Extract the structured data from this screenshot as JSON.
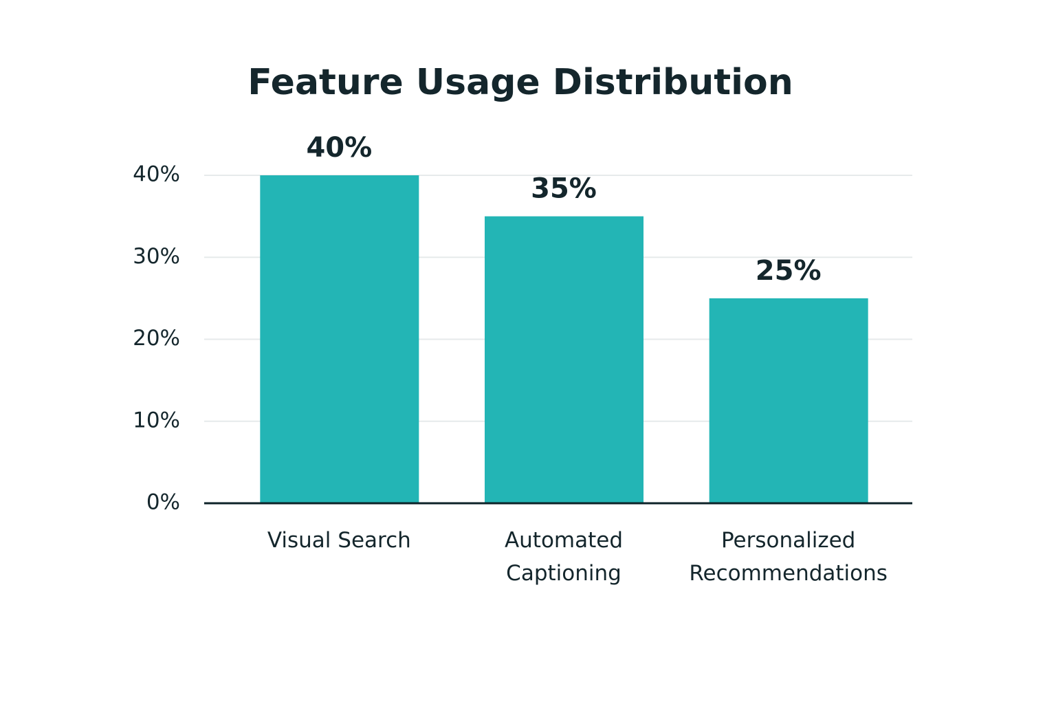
{
  "chart_data": {
    "type": "bar",
    "title": "Feature Usage Distribution",
    "categories": [
      "Visual Search",
      "Automated Captioning",
      "Personalized Recommendations"
    ],
    "values": [
      40,
      35,
      25
    ],
    "value_labels": [
      "40%",
      "35%",
      "25%"
    ],
    "color": "#23b5b5",
    "ylim": [
      0,
      40
    ],
    "yticks": [
      {
        "value": 0,
        "label": "0%"
      },
      {
        "value": 10,
        "label": "10%"
      },
      {
        "value": 20,
        "label": "20%"
      },
      {
        "value": 30,
        "label": "30%"
      },
      {
        "value": 40,
        "label": "40%"
      }
    ],
    "grid": true
  }
}
